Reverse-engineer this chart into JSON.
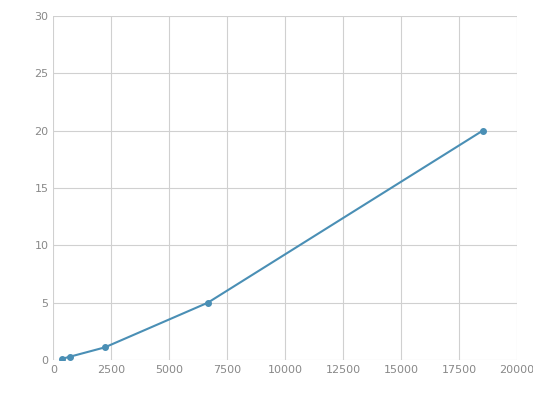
{
  "x": [
    370,
    740,
    2220,
    6667,
    18519
  ],
  "y": [
    0.1,
    0.3,
    1.1,
    5.0,
    20.0
  ],
  "line_color": "#4a8fb5",
  "marker_color": "#4a8fb5",
  "marker_size": 4,
  "line_width": 1.5,
  "xlim": [
    0,
    20000
  ],
  "ylim": [
    0,
    30
  ],
  "xticks": [
    0,
    2500,
    5000,
    7500,
    10000,
    12500,
    15000,
    17500,
    20000
  ],
  "yticks": [
    0,
    5,
    10,
    15,
    20,
    25,
    30
  ],
  "grid_color": "#d0d0d0",
  "background_color": "#ffffff",
  "tick_labelsize": 8,
  "tick_color": "#888888"
}
